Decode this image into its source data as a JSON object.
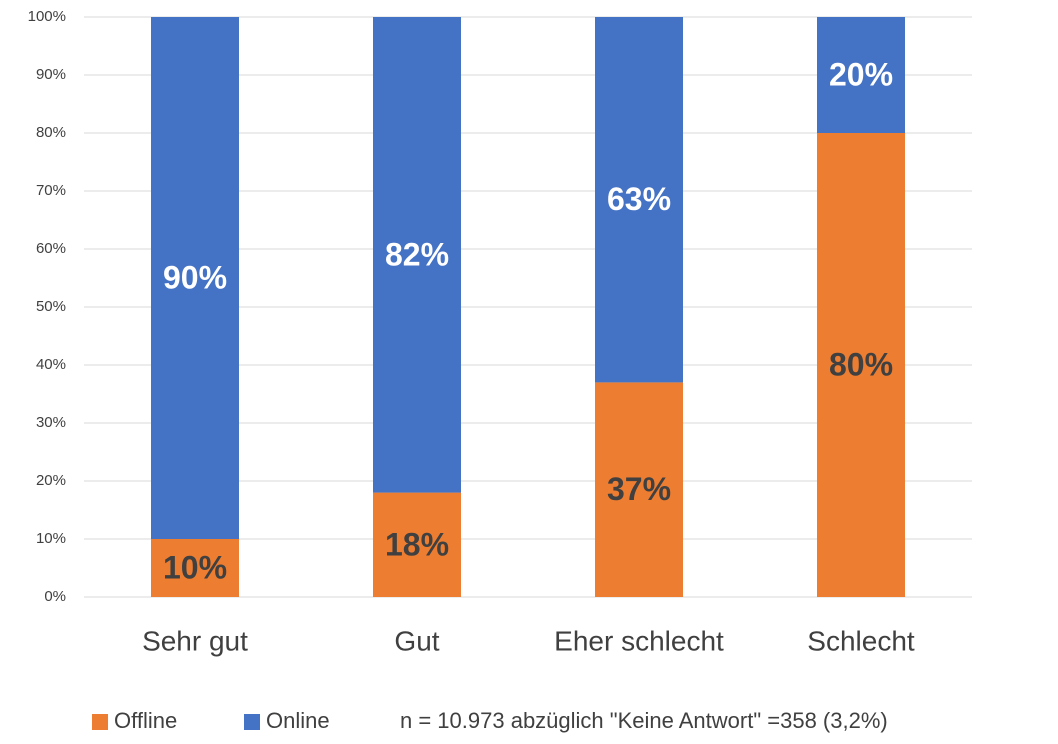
{
  "chart_data": {
    "type": "stacked_bar",
    "categories": [
      "Sehr gut",
      "Gut",
      "Eher schlecht",
      "Schlecht"
    ],
    "series": [
      {
        "name": "Offline",
        "color": "#ED7D31",
        "values": [
          10,
          18,
          37,
          80
        ],
        "value_labels": [
          "10%",
          "18%",
          "37%",
          "80%"
        ],
        "label_color": "#404040"
      },
      {
        "name": "Online",
        "color": "#4472C4",
        "values": [
          90,
          82,
          63,
          20
        ],
        "value_labels": [
          "90%",
          "82%",
          "63%",
          "20%"
        ],
        "label_color": "#FFFFFF"
      }
    ],
    "ylim": [
      0,
      100
    ],
    "yticks": [
      {
        "value": 0,
        "label": "0%"
      },
      {
        "value": 10,
        "label": "10%"
      },
      {
        "value": 20,
        "label": "20%"
      },
      {
        "value": 30,
        "label": "30%"
      },
      {
        "value": 40,
        "label": "40%"
      },
      {
        "value": 50,
        "label": "50%"
      },
      {
        "value": 60,
        "label": "60%"
      },
      {
        "value": 70,
        "label": "70%"
      },
      {
        "value": 80,
        "label": "80%"
      },
      {
        "value": 90,
        "label": "90%"
      },
      {
        "value": 100,
        "label": "100%"
      }
    ],
    "grid": true,
    "legend": "bottom-left",
    "note": "n = 10.973 abzüglich \"Keine Antwort\" =358 (3,2%)"
  }
}
